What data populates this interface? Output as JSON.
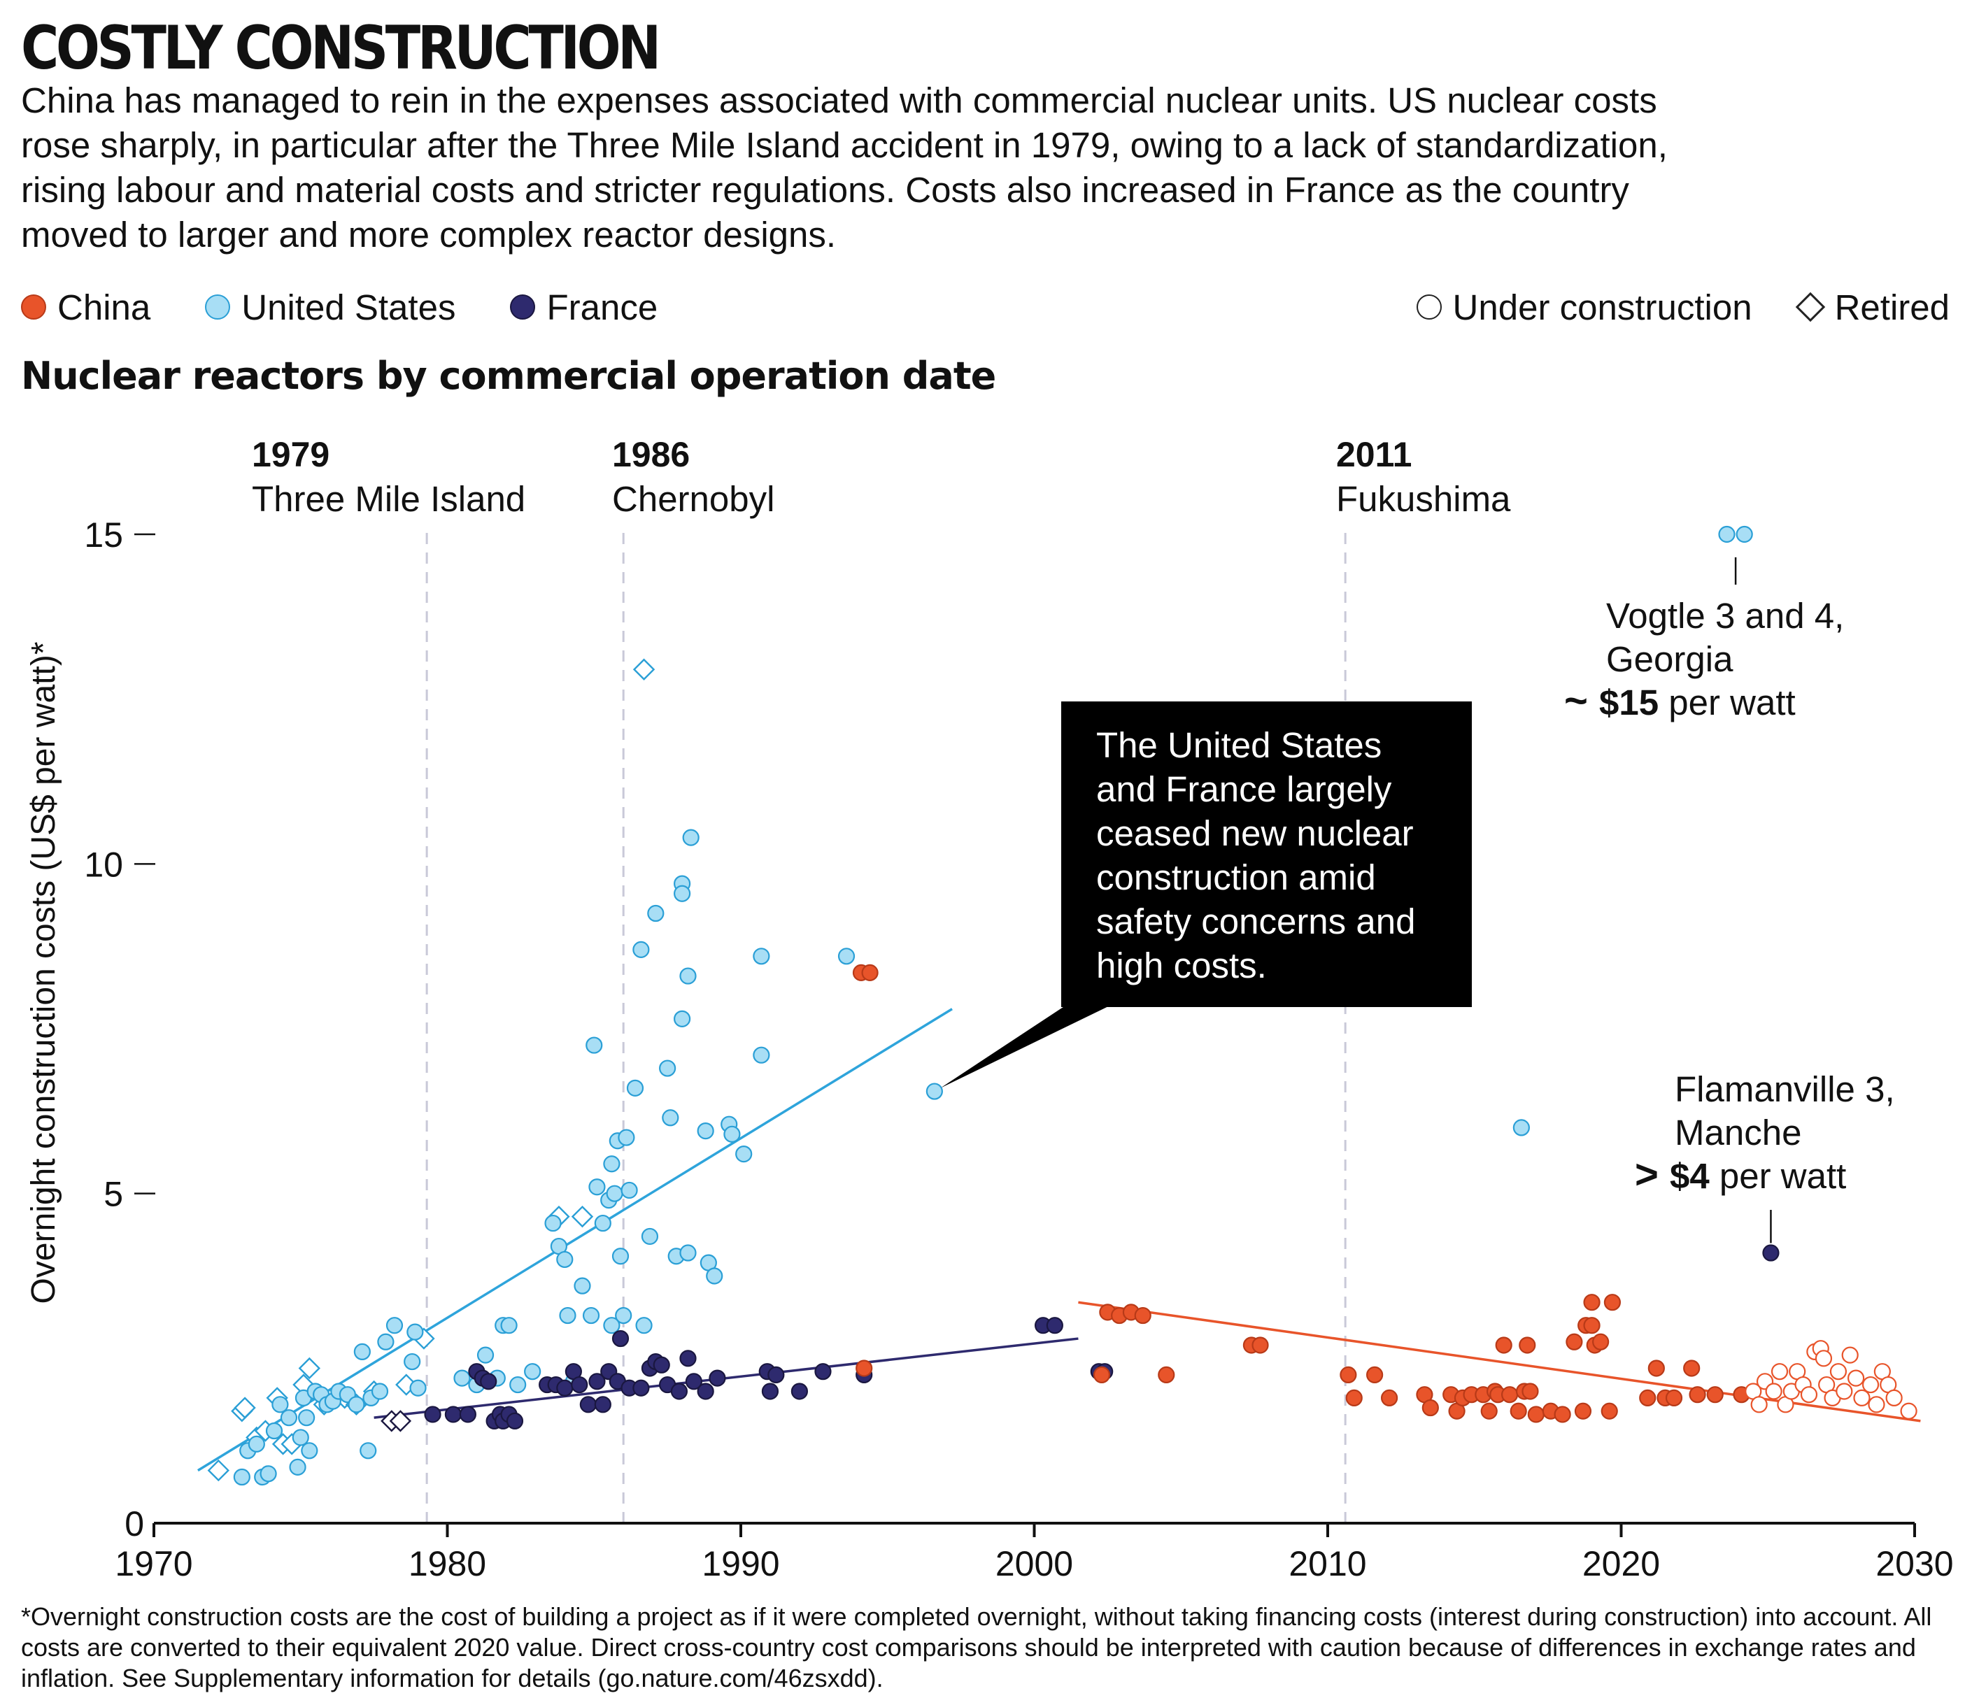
{
  "title": "COSTLY CONSTRUCTION",
  "subtitle": "China has managed to rein in the expenses associated with commercial nuclear units. US nuclear costs rose sharply, in particular after the Three Mile Island accident in 1979, owing to a lack of standardization, rising labour and material costs and stricter regulations. Costs also increased in France as the country moved to larger and more complex reactor designs.",
  "legend": {
    "countries": [
      {
        "label": "China",
        "color": "#e8542a"
      },
      {
        "label": "United States",
        "color": "#a8def5"
      },
      {
        "label": "France",
        "color": "#2e2a6e"
      }
    ],
    "status": [
      {
        "label": "Under construction",
        "icon": "open-circle-icon"
      },
      {
        "label": "Retired",
        "icon": "diamond-icon"
      }
    ]
  },
  "chart_heading": "Nuclear reactors by commercial operation date",
  "footnote": "*Overnight construction costs are the cost of building a project as if it were completed overnight, without taking financing costs (interest during construction) into account. All costs are converted to their equivalent 2020 value. Direct cross-country cost comparisons should be interpreted with caution because of differences in exchange rates and inflation. See Supplementary information for details (go.nature.com/46zsxdd).",
  "colors": {
    "china": "#e8542a",
    "china_edge": "#b83a18",
    "us": "#a8def5",
    "us_edge": "#2a9fd6",
    "us_trend": "#2ea4db",
    "france": "#2e2a6e",
    "france_edge": "#1a1740",
    "event_line": "#c9c9d8",
    "callout_bg": "#000000"
  },
  "chart_data": {
    "type": "scatter",
    "ylabel": "Overnight construction costs (US$ per watt)*",
    "xlim": [
      1970,
      2030
    ],
    "ylim": [
      0,
      15
    ],
    "xticks": [
      1970,
      1980,
      1990,
      2000,
      2010,
      2020,
      2030
    ],
    "yticks": [
      0,
      5,
      10,
      15
    ],
    "events": [
      {
        "x": 1979.3,
        "year": "1979",
        "label": "Three Mile Island"
      },
      {
        "x": 1986.0,
        "year": "1986",
        "label": "Chernobyl"
      },
      {
        "x": 2010.6,
        "year": "2011",
        "label": "Fukushima"
      }
    ],
    "trendlines": [
      {
        "series": "United States",
        "x": [
          1971.5,
          1997.2
        ],
        "y": [
          0.8,
          7.8
        ]
      },
      {
        "series": "France",
        "x": [
          1977.5,
          2001.5
        ],
        "y": [
          1.6,
          2.8
        ]
      },
      {
        "series": "China",
        "x": [
          2001.5,
          2030.2
        ],
        "y": [
          3.35,
          1.55
        ]
      }
    ],
    "annotations": [
      {
        "lines": [
          "Vogtle 3 and 4,",
          "Georgia"
        ],
        "prefix": "~",
        "value": "$15",
        "suffix": " per watt",
        "pointer": [
          2023.9,
          14.8
        ]
      },
      {
        "lines": [
          "Flamanville 3,",
          "Manche"
        ],
        "prefix": ">",
        "value": "$4",
        "suffix": " per watt",
        "pointer": [
          2025.1,
          4.1
        ]
      }
    ],
    "callout": {
      "lines": [
        "The United States",
        "and France largely",
        "ceased new nuclear",
        "construction amid",
        "safety concerns and",
        "high costs."
      ],
      "pointer": [
        1996.8,
        6.6
      ]
    },
    "series": [
      {
        "name": "United States",
        "operating": [
          [
            1973.0,
            0.7
          ],
          [
            1973.2,
            1.1
          ],
          [
            1973.5,
            1.2
          ],
          [
            1973.7,
            0.7
          ],
          [
            1973.9,
            0.75
          ],
          [
            1974.1,
            1.4
          ],
          [
            1974.3,
            1.8
          ],
          [
            1974.6,
            1.6
          ],
          [
            1974.9,
            0.85
          ],
          [
            1975.0,
            1.3
          ],
          [
            1975.1,
            1.9
          ],
          [
            1975.2,
            1.6
          ],
          [
            1975.3,
            1.1
          ],
          [
            1975.5,
            2.0
          ],
          [
            1975.7,
            1.95
          ],
          [
            1975.9,
            1.8
          ],
          [
            1976.1,
            1.85
          ],
          [
            1976.3,
            2.0
          ],
          [
            1976.6,
            1.95
          ],
          [
            1976.9,
            1.8
          ],
          [
            1977.1,
            2.6
          ],
          [
            1977.4,
            1.9
          ],
          [
            1977.7,
            2.0
          ],
          [
            1977.9,
            2.75
          ],
          [
            1977.3,
            1.1
          ],
          [
            1978.2,
            3.0
          ],
          [
            1978.8,
            2.45
          ],
          [
            1978.9,
            2.9
          ],
          [
            1979.0,
            2.05
          ],
          [
            1980.5,
            2.2
          ],
          [
            1981.0,
            2.1
          ],
          [
            1981.3,
            2.55
          ],
          [
            1981.7,
            2.2
          ],
          [
            1981.9,
            3.0
          ],
          [
            1982.1,
            3.0
          ],
          [
            1982.4,
            2.1
          ],
          [
            1982.9,
            2.3
          ],
          [
            1983.6,
            4.55
          ],
          [
            1983.8,
            4.2
          ],
          [
            1984.0,
            4.0
          ],
          [
            1984.1,
            3.15
          ],
          [
            1984.3,
            2.15
          ],
          [
            1984.6,
            3.6
          ],
          [
            1984.9,
            3.15
          ],
          [
            1985.0,
            7.25
          ],
          [
            1985.1,
            5.1
          ],
          [
            1985.3,
            4.55
          ],
          [
            1985.5,
            4.9
          ],
          [
            1985.6,
            5.45
          ],
          [
            1985.6,
            3.0
          ],
          [
            1985.7,
            5.0
          ],
          [
            1985.8,
            5.8
          ],
          [
            1985.9,
            4.05
          ],
          [
            1986.0,
            3.15
          ],
          [
            1986.1,
            5.85
          ],
          [
            1986.2,
            5.05
          ],
          [
            1986.4,
            6.6
          ],
          [
            1986.6,
            8.7
          ],
          [
            1986.7,
            3.0
          ],
          [
            1986.9,
            4.35
          ],
          [
            1987.1,
            9.25
          ],
          [
            1987.5,
            6.9
          ],
          [
            1987.6,
            6.15
          ],
          [
            1987.8,
            4.05
          ],
          [
            1988.0,
            9.7
          ],
          [
            1988.0,
            9.55
          ],
          [
            1988.0,
            7.65
          ],
          [
            1988.2,
            4.1
          ],
          [
            1988.2,
            8.3
          ],
          [
            1988.3,
            10.4
          ],
          [
            1988.8,
            5.95
          ],
          [
            1988.9,
            3.95
          ],
          [
            1989.1,
            3.75
          ],
          [
            1989.6,
            6.05
          ],
          [
            1989.7,
            5.9
          ],
          [
            1990.1,
            5.6
          ],
          [
            1990.7,
            8.6
          ],
          [
            1990.7,
            7.1
          ],
          [
            1993.6,
            8.6
          ],
          [
            1996.6,
            6.55
          ],
          [
            2016.6,
            6.0
          ],
          [
            2023.6,
            15.0
          ],
          [
            2024.2,
            15.0
          ]
        ],
        "retired": [
          [
            1972.2,
            0.8
          ],
          [
            1973.0,
            1.7
          ],
          [
            1973.1,
            1.75
          ],
          [
            1973.5,
            1.3
          ],
          [
            1973.8,
            1.4
          ],
          [
            1974.2,
            1.9
          ],
          [
            1974.4,
            1.2
          ],
          [
            1974.7,
            1.2
          ],
          [
            1975.1,
            2.1
          ],
          [
            1975.3,
            2.35
          ],
          [
            1975.8,
            1.8
          ],
          [
            1976.5,
            1.9
          ],
          [
            1976.9,
            1.8
          ],
          [
            1977.5,
            2.0
          ],
          [
            1978.6,
            2.1
          ],
          [
            1979.2,
            2.8
          ],
          [
            1983.8,
            4.65
          ],
          [
            1984.6,
            4.65
          ],
          [
            1986.7,
            12.95
          ]
        ]
      },
      {
        "name": "France",
        "operating": [
          [
            1979.5,
            1.65
          ],
          [
            1980.2,
            1.65
          ],
          [
            1980.7,
            1.65
          ],
          [
            1981.0,
            2.3
          ],
          [
            1981.2,
            2.2
          ],
          [
            1981.4,
            2.15
          ],
          [
            1981.6,
            1.55
          ],
          [
            1981.8,
            1.65
          ],
          [
            1981.9,
            1.55
          ],
          [
            1982.1,
            1.65
          ],
          [
            1982.3,
            1.55
          ],
          [
            1983.4,
            2.1
          ],
          [
            1983.7,
            2.1
          ],
          [
            1984.0,
            2.05
          ],
          [
            1984.3,
            2.3
          ],
          [
            1984.5,
            2.1
          ],
          [
            1984.8,
            1.8
          ],
          [
            1985.1,
            2.15
          ],
          [
            1985.3,
            1.8
          ],
          [
            1985.5,
            2.3
          ],
          [
            1985.8,
            2.15
          ],
          [
            1985.9,
            2.8
          ],
          [
            1986.2,
            2.05
          ],
          [
            1986.6,
            2.05
          ],
          [
            1986.9,
            2.35
          ],
          [
            1987.1,
            2.45
          ],
          [
            1987.3,
            2.4
          ],
          [
            1987.5,
            2.1
          ],
          [
            1987.9,
            2.0
          ],
          [
            1988.2,
            2.5
          ],
          [
            1988.4,
            2.15
          ],
          [
            1988.8,
            2.0
          ],
          [
            1989.2,
            2.2
          ],
          [
            1990.9,
            2.3
          ],
          [
            1991.0,
            2.0
          ],
          [
            1991.2,
            2.25
          ],
          [
            1992.0,
            2.0
          ],
          [
            1992.8,
            2.3
          ],
          [
            1994.2,
            2.25
          ],
          [
            2000.3,
            3.0
          ],
          [
            2000.7,
            3.0
          ],
          [
            2002.2,
            2.3
          ],
          [
            2002.4,
            2.3
          ],
          [
            2025.1,
            4.1
          ]
        ],
        "retired": [
          [
            1978.1,
            1.55
          ],
          [
            1978.4,
            1.55
          ]
        ]
      },
      {
        "name": "China",
        "operating": [
          [
            1994.1,
            8.35
          ],
          [
            1994.4,
            8.35
          ],
          [
            1994.2,
            2.35
          ],
          [
            2002.3,
            2.25
          ],
          [
            2002.5,
            3.2
          ],
          [
            2002.9,
            3.15
          ],
          [
            2003.3,
            3.2
          ],
          [
            2003.7,
            3.15
          ],
          [
            2004.5,
            2.25
          ],
          [
            2007.4,
            2.7
          ],
          [
            2007.7,
            2.7
          ],
          [
            2010.7,
            2.25
          ],
          [
            2010.9,
            1.9
          ],
          [
            2011.6,
            2.25
          ],
          [
            2012.1,
            1.9
          ],
          [
            2013.3,
            1.95
          ],
          [
            2013.5,
            1.75
          ],
          [
            2014.2,
            1.95
          ],
          [
            2014.4,
            1.7
          ],
          [
            2014.6,
            1.9
          ],
          [
            2014.9,
            1.95
          ],
          [
            2015.3,
            1.95
          ],
          [
            2015.5,
            1.7
          ],
          [
            2015.7,
            2.0
          ],
          [
            2015.8,
            1.95
          ],
          [
            2016.0,
            2.7
          ],
          [
            2016.2,
            1.95
          ],
          [
            2016.5,
            1.7
          ],
          [
            2016.7,
            2.0
          ],
          [
            2016.8,
            2.7
          ],
          [
            2016.9,
            2.0
          ],
          [
            2017.1,
            1.65
          ],
          [
            2017.6,
            1.7
          ],
          [
            2018.0,
            1.65
          ],
          [
            2018.4,
            2.75
          ],
          [
            2018.7,
            1.7
          ],
          [
            2018.8,
            3.0
          ],
          [
            2019.0,
            3.0
          ],
          [
            2019.1,
            2.7
          ],
          [
            2019.3,
            2.75
          ],
          [
            2019.0,
            3.35
          ],
          [
            2019.6,
            1.7
          ],
          [
            2019.7,
            3.35
          ],
          [
            2020.9,
            1.9
          ],
          [
            2021.2,
            2.35
          ],
          [
            2021.5,
            1.9
          ],
          [
            2021.8,
            1.9
          ],
          [
            2022.4,
            2.35
          ],
          [
            2022.6,
            1.95
          ],
          [
            2023.2,
            1.95
          ],
          [
            2024.1,
            1.95
          ]
        ],
        "under_construction": [
          [
            2024.5,
            2.0
          ],
          [
            2024.7,
            1.8
          ],
          [
            2024.9,
            2.15
          ],
          [
            2025.2,
            2.0
          ],
          [
            2025.4,
            2.3
          ],
          [
            2025.6,
            1.8
          ],
          [
            2025.8,
            2.0
          ],
          [
            2026.0,
            2.3
          ],
          [
            2026.2,
            2.1
          ],
          [
            2026.4,
            1.95
          ],
          [
            2026.6,
            2.6
          ],
          [
            2026.8,
            2.65
          ],
          [
            2026.9,
            2.5
          ],
          [
            2027.0,
            2.1
          ],
          [
            2027.2,
            1.9
          ],
          [
            2027.4,
            2.3
          ],
          [
            2027.6,
            2.0
          ],
          [
            2027.8,
            2.55
          ],
          [
            2028.0,
            2.2
          ],
          [
            2028.2,
            1.9
          ],
          [
            2028.5,
            2.1
          ],
          [
            2028.7,
            1.8
          ],
          [
            2028.9,
            2.3
          ],
          [
            2029.1,
            2.1
          ],
          [
            2029.3,
            1.9
          ],
          [
            2029.8,
            1.7
          ]
        ]
      }
    ]
  }
}
